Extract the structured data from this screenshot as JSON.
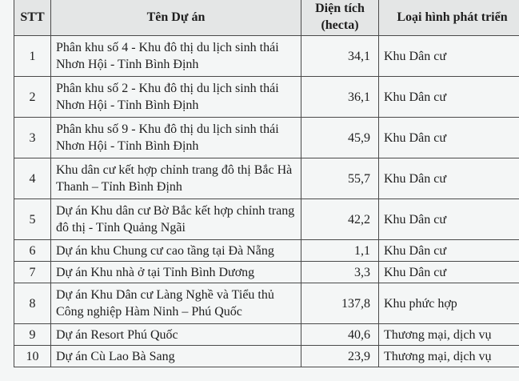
{
  "headers": {
    "stt": "STT",
    "name": "Tên Dự án",
    "area": "Diện tích (hecta)",
    "type": "Loại hình phát triển"
  },
  "rows": [
    {
      "stt": "1",
      "name": "Phân khu số 4 - Khu đô thị du lịch sinh thái Nhơn Hội - Tỉnh Bình Định",
      "area": "34,1",
      "type": "Khu Dân cư"
    },
    {
      "stt": "2",
      "name": "Phân khu số 2 - Khu đô thị du lịch sinh thái Nhơn Hội - Tỉnh Bình Định",
      "area": "36,1",
      "type": "Khu Dân cư"
    },
    {
      "stt": "3",
      "name": "Phân khu số 9 - Khu đô thị du lịch sinh thái Nhơn Hội - Tỉnh Bình Định",
      "area": "45,9",
      "type": "Khu Dân cư"
    },
    {
      "stt": "4",
      "name": "Khu dân cư kết hợp chỉnh trang đô thị Bắc Hà Thanh – Tỉnh Bình Định",
      "area": "55,7",
      "type": "Khu Dân cư"
    },
    {
      "stt": "5",
      "name": "Dự án Khu dân cư Bờ Bắc kết hợp chỉnh trang đô thị - Tỉnh Quảng Ngãi",
      "area": "42,2",
      "type": "Khu Dân cư"
    },
    {
      "stt": "6",
      "name": "Dự án khu Chung cư cao tầng tại Đà Nẵng",
      "area": "1,1",
      "type": "Khu Dân cư"
    },
    {
      "stt": "7",
      "name": "Dự án Khu nhà ở tại Tỉnh Bình Dương",
      "area": "3,3",
      "type": "Khu Dân cư"
    },
    {
      "stt": "8",
      "name": "Dự án Khu Dân cư Làng Nghề và Tiểu thủ Công nghiệp Hàm Ninh – Phú Quốc",
      "area": "137,8",
      "type": "Khu phức hợp"
    },
    {
      "stt": "9",
      "name": "Dự án Resort Phú Quốc",
      "area": "40,6",
      "type": "Thương mại, dịch vụ"
    },
    {
      "stt": "10",
      "name": "Dự án Cù Lao Bà Sang",
      "area": "23,9",
      "type": "Thương mại, dịch vụ"
    }
  ]
}
